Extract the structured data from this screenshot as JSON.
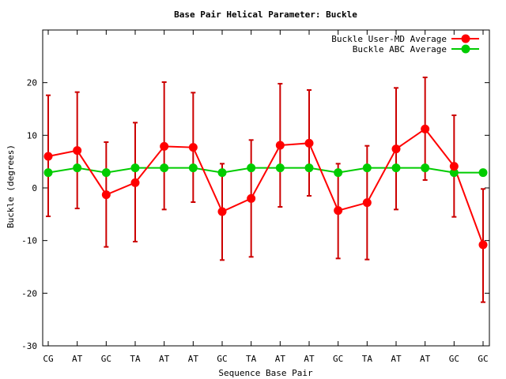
{
  "chart_data": {
    "type": "line",
    "title": "Base Pair Helical Parameter: Buckle",
    "xlabel": "Sequence Base Pair",
    "ylabel": "Buckle (degrees)",
    "ylim": [
      -30,
      30
    ],
    "yticks": [
      -30,
      -20,
      -10,
      0,
      10,
      20
    ],
    "legend_position": "top-right",
    "grid": false,
    "categories": [
      "CG",
      "AT",
      "GC",
      "TA",
      "AT",
      "AT",
      "GC",
      "TA",
      "AT",
      "AT",
      "GC",
      "TA",
      "AT",
      "AT",
      "GC",
      "GC"
    ],
    "series": [
      {
        "name": "Buckle User-MD Average",
        "color": "#ff0000",
        "error_color": "#cc0000",
        "values": [
          6.0,
          7.1,
          -1.3,
          1.0,
          7.9,
          7.7,
          -4.5,
          -2.0,
          8.1,
          8.5,
          -4.3,
          -2.8,
          7.4,
          11.2,
          4.1,
          -10.8
        ],
        "err_low": [
          -5.4,
          -3.9,
          -11.2,
          -10.2,
          -4.1,
          -2.7,
          -13.7,
          -13.1,
          -3.6,
          -1.5,
          -13.4,
          -13.6,
          -4.1,
          1.5,
          -5.5,
          -21.7
        ],
        "err_high": [
          17.6,
          18.2,
          8.7,
          12.4,
          20.1,
          18.1,
          4.6,
          9.1,
          19.8,
          18.6,
          4.6,
          8.0,
          19.0,
          21.0,
          13.8,
          -0.2
        ]
      },
      {
        "name": "Buckle ABC Average",
        "color": "#00cc00",
        "values": [
          2.9,
          3.8,
          2.9,
          3.8,
          3.8,
          3.8,
          2.9,
          3.8,
          3.8,
          3.8,
          2.9,
          3.8,
          3.8,
          3.8,
          2.9,
          2.9
        ]
      }
    ]
  }
}
